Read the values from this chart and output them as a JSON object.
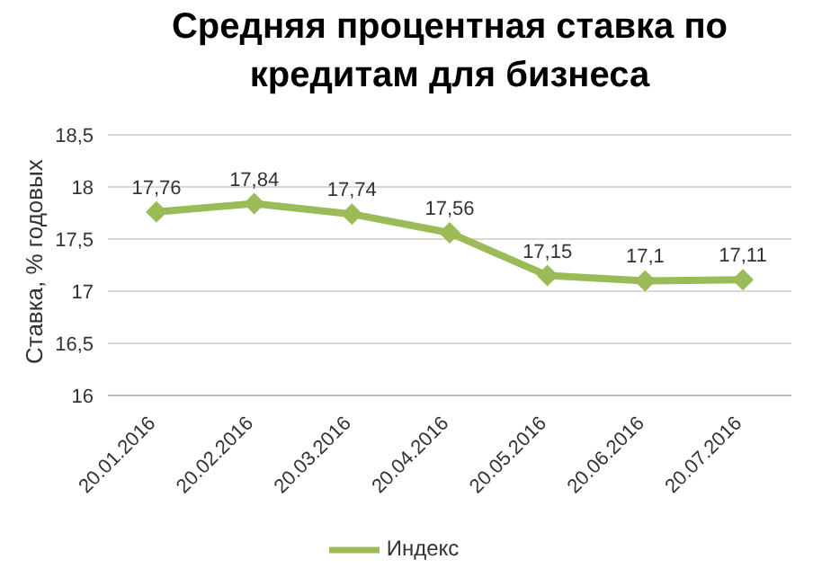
{
  "chart_data": {
    "type": "line",
    "title": "Средняя процентная ставка по кредитам для бизнеса",
    "ylabel": "Ставка, % годовых",
    "categories": [
      "20.01.2016",
      "20.02.2016",
      "20.03.2016",
      "20.04.2016",
      "20.05.2016",
      "20.06.2016",
      "20.07.2016"
    ],
    "series": [
      {
        "name": "Индекс",
        "color": "#9bbb59",
        "values": [
          17.76,
          17.84,
          17.74,
          17.56,
          17.15,
          17.1,
          17.11
        ],
        "value_labels": [
          "17,76",
          "17,84",
          "17,74",
          "17,56",
          "17,15",
          "17,1",
          "17,11"
        ]
      }
    ],
    "ylim": [
      16,
      18.5
    ],
    "yticks": [
      16,
      {
        "value": 16.5,
        "label": "16,5"
      },
      17,
      {
        "value": 17.5,
        "label": "17,5"
      },
      18,
      {
        "value": 18.5,
        "label": "18,5"
      }
    ],
    "grid": "y",
    "legend": "bottom",
    "marker": "diamond",
    "line_style": "solid"
  }
}
